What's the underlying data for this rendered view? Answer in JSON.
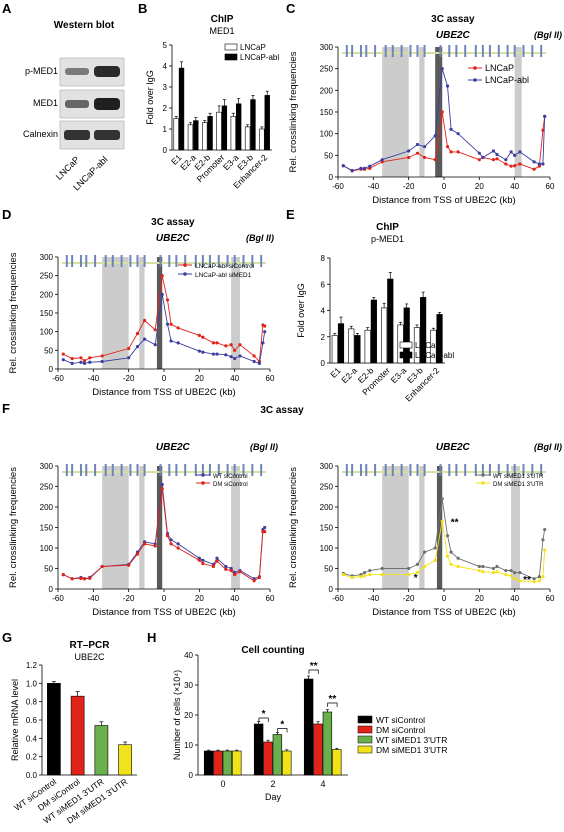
{
  "panels": {
    "A": {
      "letter": "A",
      "title": "Western blot",
      "rows": [
        "p-MED1",
        "MED1",
        "Calnexin"
      ],
      "lanes": [
        "LNCaP",
        "LNCaP-abl"
      ]
    },
    "B": {
      "letter": "B"
    },
    "C": {
      "letter": "C",
      "gene": "UBE2C",
      "enzyme": "(Bgl II)"
    },
    "D": {
      "letter": "D",
      "gene": "UBE2C",
      "enzyme": "(Bgl II)"
    },
    "E": {
      "letter": "E"
    },
    "F": {
      "letter": "F",
      "section_title": "3C assay",
      "gene": "UBE2C",
      "enzyme": "(Bgl II)"
    },
    "G": {
      "letter": "G"
    },
    "H": {
      "letter": "H"
    }
  },
  "colors": {
    "lncap": "#e2231a",
    "abl": "#3b3fa0",
    "wt_sicontrol": "#3b3fa0",
    "dm_sicontrol": "#e2231a",
    "wt_simed1": "#707070",
    "dm_simed1": "#f2e21a",
    "bar_black": "#000000",
    "bar_white": "#ffffff",
    "bar_red": "#e2231a",
    "bar_green": "#6ab04c",
    "bar_yellow": "#f2e21a",
    "shade": "#cccccc",
    "shade_dark": "#5a5a5a",
    "bgl_marker": "#6d86b8"
  },
  "chart_data": [
    {
      "panel": "B",
      "type": "bar",
      "title": "ChIP",
      "subtitle": "MED1",
      "ylabel": "Fold over IgG",
      "ylim": [
        0,
        5
      ],
      "yticks": [
        0,
        1,
        2,
        3,
        4,
        5
      ],
      "categories": [
        "E1",
        "E2-a",
        "E2-b",
        "Promoter",
        "E3-a",
        "E3-b",
        "Enhancer-2"
      ],
      "series": [
        {
          "name": "LNCaP",
          "values": [
            1.5,
            1.2,
            1.3,
            1.8,
            1.6,
            1.1,
            1.0
          ],
          "errors": [
            0.1,
            0.1,
            0.1,
            0.3,
            0.15,
            0.1,
            0.1
          ]
        },
        {
          "name": "LNCaP-abl",
          "values": [
            3.9,
            1.4,
            1.6,
            2.1,
            2.2,
            2.4,
            2.6
          ],
          "errors": [
            0.3,
            0.15,
            0.15,
            0.3,
            0.25,
            0.2,
            0.2
          ]
        }
      ],
      "legend": "top-right"
    },
    {
      "panel": "C",
      "type": "line",
      "title": "3C assay",
      "xlabel": "Distance from TSS of UBE2C (kb)",
      "ylabel": "Rel. crosslinking frequencies",
      "xlim": [
        -60,
        60
      ],
      "ylim": [
        0,
        300
      ],
      "xticks": [
        -60,
        -40,
        -20,
        0,
        20,
        40,
        60
      ],
      "yticks": [
        0,
        50,
        100,
        150,
        200,
        250,
        300
      ],
      "shaded_regions": [
        [
          -35,
          -20
        ],
        [
          -14,
          -11
        ],
        [
          40,
          44
        ]
      ],
      "dark_region": [
        -5,
        -1
      ],
      "x": [
        -57,
        -52,
        -47,
        -45,
        -42,
        -35,
        -20,
        -15,
        -11,
        -5,
        -1,
        2,
        4,
        8,
        20,
        22,
        28,
        30,
        35,
        38,
        40,
        43,
        51,
        54,
        56,
        57
      ],
      "series": [
        {
          "name": "LNCaP",
          "values": [
            26,
            14,
            18,
            18,
            20,
            35,
            45,
            55,
            45,
            40,
            150,
            70,
            58,
            58,
            40,
            45,
            40,
            42,
            30,
            25,
            26,
            30,
            18,
            25,
            108,
            140
          ]
        },
        {
          "name": "LNCaP-abl",
          "values": [
            26,
            15,
            20,
            20,
            25,
            40,
            60,
            75,
            70,
            95,
            250,
            210,
            110,
            100,
            55,
            45,
            60,
            52,
            40,
            58,
            50,
            58,
            35,
            30,
            30,
            140
          ]
        }
      ],
      "legend": "top-right"
    },
    {
      "panel": "D",
      "type": "line",
      "title": "3C assay",
      "xlabel": "Distance from TSS of UBE2C (kb)",
      "ylabel": "Rel. crosslinking frequencies",
      "xlim": [
        -60,
        60
      ],
      "ylim": [
        0,
        300
      ],
      "xticks": [
        -60,
        -40,
        -20,
        0,
        20,
        40,
        60
      ],
      "yticks": [
        0,
        50,
        100,
        150,
        200,
        250,
        300
      ],
      "shaded_regions": [
        [
          -35,
          -20
        ],
        [
          -14,
          -11
        ],
        [
          38,
          43
        ]
      ],
      "dark_region": [
        -4,
        -1
      ],
      "x": [
        -57,
        -52,
        -47,
        -45,
        -42,
        -35,
        -20,
        -15,
        -11,
        -5,
        -1,
        2,
        4,
        8,
        20,
        22,
        28,
        30,
        35,
        38,
        40,
        43,
        51,
        54,
        56,
        57
      ],
      "series": [
        {
          "name": "LNCaP-abl siControl",
          "values": [
            40,
            28,
            30,
            22,
            30,
            35,
            55,
            95,
            130,
            105,
            250,
            185,
            120,
            110,
            90,
            85,
            70,
            70,
            62,
            65,
            50,
            65,
            35,
            20,
            118,
            115
          ]
        },
        {
          "name": "LNCaP-abl siMED1",
          "values": [
            25,
            15,
            18,
            15,
            18,
            20,
            30,
            60,
            80,
            65,
            200,
            120,
            75,
            70,
            48,
            45,
            40,
            40,
            38,
            33,
            28,
            35,
            20,
            15,
            70,
            100
          ]
        }
      ],
      "legend": "top-right"
    },
    {
      "panel": "E",
      "type": "bar",
      "title": "ChIP",
      "subtitle": "p-MED1",
      "ylabel": "Fold over IgG",
      "ylim": [
        0,
        8
      ],
      "yticks": [
        0,
        2,
        4,
        6,
        8
      ],
      "categories": [
        "E1",
        "E2-a",
        "E2-b",
        "Promoter",
        "E3-a",
        "E3-b",
        "Enhancer-2"
      ],
      "series": [
        {
          "name": "LNCaP",
          "values": [
            2.1,
            2.6,
            2.5,
            4.2,
            2.9,
            2.7,
            2.5
          ],
          "errors": [
            0.15,
            0.2,
            0.2,
            0.35,
            0.2,
            0.2,
            0.15
          ]
        },
        {
          "name": "LNCaP-abl",
          "values": [
            3.0,
            2.1,
            4.8,
            6.4,
            4.2,
            5.0,
            3.7
          ],
          "errors": [
            0.5,
            0.15,
            0.2,
            0.5,
            0.3,
            0.4,
            0.15
          ]
        }
      ],
      "legend": "bottom-right"
    },
    {
      "panel": "F-left",
      "type": "line",
      "xlabel": "Distance from TSS of UBE2C (kb)",
      "ylabel": "Rel. crosslinking frequencies",
      "xlim": [
        -60,
        60
      ],
      "ylim": [
        0,
        300
      ],
      "xticks": [
        -60,
        -40,
        -20,
        0,
        20,
        40,
        60
      ],
      "yticks": [
        0,
        50,
        100,
        150,
        200,
        250,
        300
      ],
      "shaded_regions": [
        [
          -35,
          -20
        ],
        [
          -14,
          -11
        ],
        [
          38,
          43
        ]
      ],
      "dark_region": [
        -4,
        -1
      ],
      "x": [
        -57,
        -52,
        -47,
        -45,
        -42,
        -35,
        -20,
        -15,
        -11,
        -5,
        -1,
        2,
        4,
        8,
        20,
        22,
        28,
        30,
        35,
        38,
        40,
        43,
        51,
        54,
        56,
        57
      ],
      "series": [
        {
          "name": "WT siControl",
          "values": [
            35,
            25,
            28,
            25,
            28,
            55,
            60,
            90,
            115,
            110,
            255,
            135,
            120,
            110,
            75,
            70,
            60,
            75,
            55,
            50,
            40,
            45,
            25,
            30,
            145,
            150
          ]
        },
        {
          "name": "DM siControl",
          "values": [
            35,
            25,
            26,
            25,
            26,
            55,
            58,
            85,
            110,
            105,
            245,
            130,
            110,
            100,
            70,
            62,
            55,
            68,
            48,
            45,
            35,
            42,
            20,
            28,
            140,
            140
          ]
        }
      ],
      "legend": "top-right"
    },
    {
      "panel": "F-right",
      "type": "line",
      "xlabel": "Distance from TSS of UBE2C (kb)",
      "ylabel": "Rel. crosslinking frequencies",
      "xlim": [
        -60,
        60
      ],
      "ylim": [
        0,
        300
      ],
      "xticks": [
        -60,
        -40,
        -20,
        0,
        20,
        40,
        60
      ],
      "yticks": [
        0,
        50,
        100,
        150,
        200,
        250,
        300
      ],
      "shaded_regions": [
        [
          -35,
          -20
        ],
        [
          -14,
          -11
        ],
        [
          38,
          43
        ]
      ],
      "dark_region": [
        -4,
        -1
      ],
      "x": [
        -57,
        -52,
        -47,
        -45,
        -42,
        -35,
        -20,
        -15,
        -11,
        -5,
        -1,
        2,
        4,
        8,
        20,
        22,
        28,
        30,
        35,
        38,
        40,
        43,
        51,
        54,
        56,
        57
      ],
      "series": [
        {
          "name": "WT siMED1 3'UTR",
          "values": [
            38,
            32,
            35,
            40,
            45,
            50,
            50,
            60,
            90,
            100,
            220,
            130,
            90,
            75,
            55,
            55,
            50,
            55,
            45,
            45,
            40,
            40,
            25,
            30,
            120,
            145
          ]
        },
        {
          "name": "DM siMED1 3'UTR",
          "values": [
            35,
            28,
            30,
            32,
            35,
            35,
            35,
            40,
            55,
            70,
            165,
            80,
            60,
            55,
            45,
            42,
            40,
            42,
            35,
            32,
            25,
            20,
            18,
            20,
            30,
            95
          ]
        }
      ],
      "annotations": [
        {
          "x": -16,
          "y": 20,
          "text": "*"
        },
        {
          "x": 6,
          "y": 155,
          "text": "**"
        },
        {
          "x": 47,
          "y": 15,
          "text": "**"
        }
      ],
      "legend": "top-right"
    },
    {
      "panel": "G",
      "type": "bar",
      "title": "RT–PCR",
      "subtitle": "UBE2C",
      "ylabel": "Relative mRNA level",
      "ylim": [
        0,
        1.2
      ],
      "yticks": [
        0,
        0.2,
        0.4,
        0.6,
        0.8,
        1.0,
        1.2
      ],
      "categories": [
        "WT siControl",
        "DM siControl",
        "WT siMED1 3'UTR",
        "DM siMED1 3'UTR"
      ],
      "values": [
        1.0,
        0.86,
        0.54,
        0.33
      ],
      "errors": [
        0.02,
        0.05,
        0.04,
        0.03
      ]
    },
    {
      "panel": "H",
      "type": "bar",
      "title": "Cell counting",
      "xlabel": "Day",
      "ylabel": "Number of cells (×10⁴)",
      "ylim": [
        0,
        40
      ],
      "yticks": [
        0,
        10,
        20,
        30,
        40
      ],
      "categories": [
        "0",
        "2",
        "4"
      ],
      "series": [
        {
          "name": "WT siControl",
          "values": [
            8,
            17,
            32
          ],
          "errors": [
            0.3,
            0.8,
            1.0
          ]
        },
        {
          "name": "DM siControl",
          "values": [
            8,
            11,
            17
          ],
          "errors": [
            0.3,
            0.6,
            0.8
          ]
        },
        {
          "name": "WT siMED1 3'UTR",
          "values": [
            8,
            13.5,
            21
          ],
          "errors": [
            0.3,
            0.6,
            0.8
          ]
        },
        {
          "name": "DM siMED1 3'UTR",
          "values": [
            8,
            8,
            8.5
          ],
          "errors": [
            0.3,
            0.4,
            0.4
          ]
        }
      ],
      "annotations": [
        "*",
        "*",
        "**",
        "**"
      ],
      "legend": "right"
    }
  ]
}
